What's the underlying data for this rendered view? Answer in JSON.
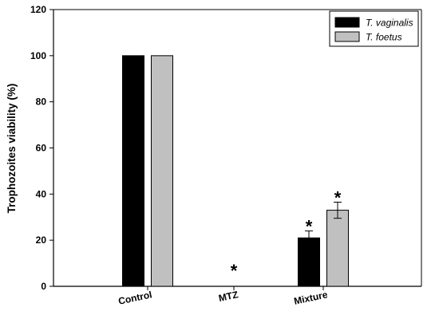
{
  "chart_data": {
    "type": "bar",
    "title": "",
    "xlabel": "",
    "ylabel": "Trophozoites viability (%)",
    "ylim": [
      0,
      120
    ],
    "yticks": [
      0,
      20,
      40,
      60,
      80,
      100,
      120
    ],
    "categories": [
      "Control",
      "MTZ",
      "Mixture"
    ],
    "series": [
      {
        "name": "T. vaginalis",
        "color": "#000000",
        "values": [
          100,
          0,
          21
        ],
        "errors": [
          null,
          null,
          3
        ],
        "significance": [
          null,
          "*",
          "*"
        ]
      },
      {
        "name": "T. foetus",
        "color": "#c0c0c0",
        "values": [
          100,
          0,
          33
        ],
        "errors": [
          null,
          null,
          3.5
        ],
        "significance": [
          null,
          null,
          "*"
        ]
      }
    ],
    "legend_position": "top-right",
    "grid": false
  }
}
